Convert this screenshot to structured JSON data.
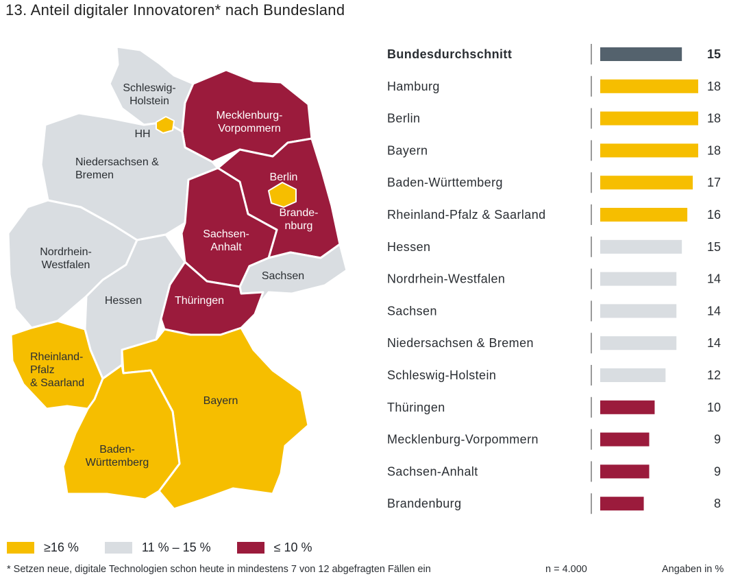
{
  "title": "13. Anteil digitaler Innovatoren* nach Bundesland",
  "colors": {
    "high": "#f6be00",
    "mid": "#d9dde1",
    "low": "#9b1b3c",
    "average": "#54626d",
    "background": "#ffffff"
  },
  "map": {
    "labels": {
      "sh": "Schleswig-Holstein",
      "hh": "HH",
      "mv": "Mecklenburg-Vorpommern",
      "ni": "Niedersachsen & Bremen",
      "be": "Berlin",
      "bb": "Brandenburg",
      "st": "Sachsen-Anhalt",
      "nw": "Nordrhein-Westfalen",
      "sn": "Sachsen",
      "he": "Hessen",
      "th": "Thüringen",
      "rp": "Rheinland-Pfalz & Saarland",
      "by": "Bayern",
      "bw": "Baden-Württemberg"
    }
  },
  "chart_data": {
    "type": "bar",
    "orientation": "horizontal",
    "categories": [
      "Bundesdurchschnitt",
      "Hamburg",
      "Berlin",
      "Bayern",
      "Baden-Württemberg",
      "Rheinland-Pfalz & Saarland",
      "Hessen",
      "Nordrhein-Westfalen",
      "Sachsen",
      "Niedersachsen & Bremen",
      "Schleswig-Holstein",
      "Thüringen",
      "Mecklenburg-Vorpommern",
      "Sachsen-Anhalt",
      "Brandenburg"
    ],
    "values": [
      15,
      18,
      18,
      18,
      17,
      16,
      15,
      14,
      14,
      14,
      12,
      10,
      9,
      9,
      8
    ],
    "groups": [
      "average",
      "high",
      "high",
      "high",
      "high",
      "high",
      "mid",
      "mid",
      "mid",
      "mid",
      "mid",
      "low",
      "low",
      "low",
      "low"
    ],
    "unit": "Angaben in %",
    "xlim": [
      0,
      18
    ],
    "grid": false
  },
  "legend": [
    {
      "group": "high",
      "label": "≥16 %"
    },
    {
      "group": "mid",
      "label": "11 % – 15 %"
    },
    {
      "group": "low",
      "label": "≤ 10 %"
    }
  ],
  "footnote": "* Setzen neue, digitale Technologien schon heute in mindestens 7 von 12 abgefragten Fällen ein",
  "sample": "n = 4.000",
  "unit_note": "Angaben in %"
}
